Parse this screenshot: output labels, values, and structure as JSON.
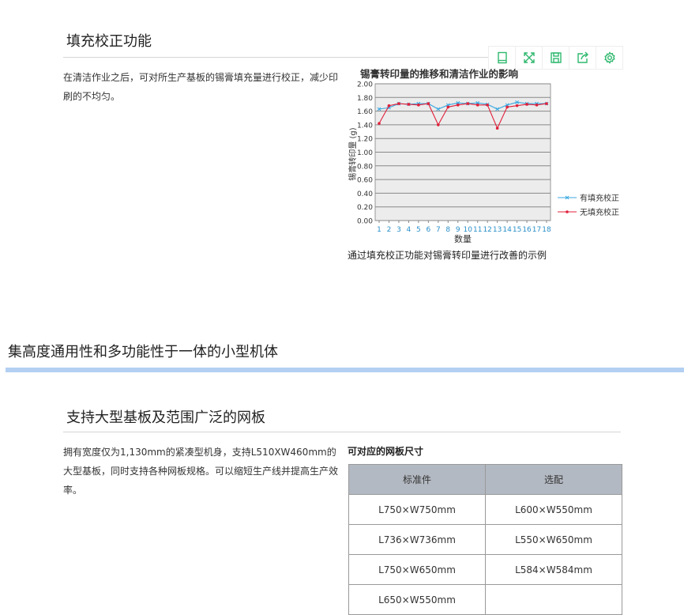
{
  "section1": {
    "heading": "填充校正功能",
    "body": "在清洁作业之后，可对所生产基板的锡膏填充量进行校正，减少印刷的不均匀。",
    "caption": "通过填充校正功能对锡膏转印量进行改善的示例"
  },
  "toolbar": {
    "icons": [
      "tablet-icon",
      "fullscreen-icon",
      "save-icon",
      "share-icon",
      "gear-icon"
    ]
  },
  "chart_data": {
    "type": "line",
    "title": "锡膏转印量的推移和清洁作业的影响",
    "xlabel": "数量",
    "ylabel": "锡膏转印量 (g)",
    "x": [
      1,
      2,
      3,
      4,
      5,
      6,
      7,
      8,
      9,
      10,
      11,
      12,
      13,
      14,
      15,
      16,
      17,
      18
    ],
    "ylim": [
      0,
      2.0
    ],
    "yticks": [
      "0.00",
      "0.20",
      "0.40",
      "0.60",
      "0.80",
      "1.00",
      "1.20",
      "1.40",
      "1.60",
      "1.80",
      "2.00"
    ],
    "grid": true,
    "legend": "right",
    "series": [
      {
        "name": "有填充校正",
        "color": "#3aa8e0",
        "marker": "x",
        "values": [
          1.63,
          1.65,
          1.71,
          1.7,
          1.71,
          1.71,
          1.63,
          1.69,
          1.72,
          1.71,
          1.72,
          1.7,
          1.63,
          1.69,
          1.73,
          1.71,
          1.71,
          1.71
        ]
      },
      {
        "name": "无填充校正",
        "color": "#e0203a",
        "marker": "circle",
        "values": [
          1.42,
          1.68,
          1.71,
          1.7,
          1.69,
          1.71,
          1.4,
          1.66,
          1.69,
          1.71,
          1.69,
          1.69,
          1.35,
          1.66,
          1.68,
          1.7,
          1.69,
          1.71
        ]
      }
    ]
  },
  "banner": {
    "heading": "集高度通用性和多功能性于一体的小型机体",
    "accent": "#b3cff2"
  },
  "section2": {
    "heading": "支持大型基板及范围广泛的网板",
    "body": "拥有宽度仅为1,130mm的紧凑型机身，支持L510XW460mm的大型基板，同时支持各种网板规格。可以缩短生产线并提高生产效率。",
    "table_title": "可对应的网板尺寸",
    "columns": [
      "标准件",
      "选配"
    ],
    "rows": [
      [
        "L750×W750mm",
        "L600×W550mm"
      ],
      [
        "L736×W736mm",
        "L550×W650mm"
      ],
      [
        "L750×W650mm",
        "L584×W584mm"
      ],
      [
        "L650×W550mm",
        ""
      ]
    ]
  }
}
